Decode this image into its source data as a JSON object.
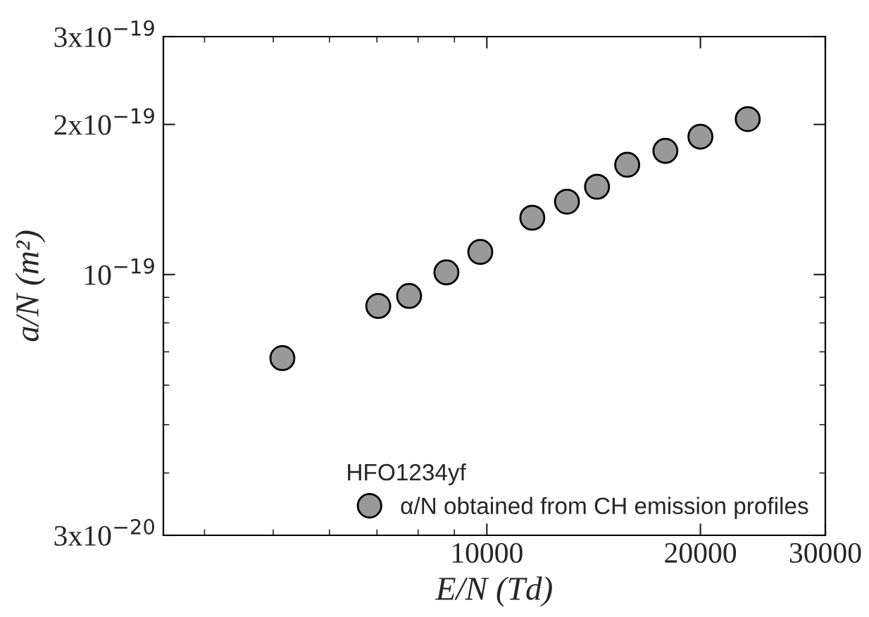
{
  "chart_data": {
    "type": "scatter",
    "xlabel": "E/N (Td)",
    "ylabel": "a/N (m²)",
    "legend_title": "HFO1234yf",
    "log": "xy",
    "grid": false,
    "legend": "bottom right",
    "marker": "circle",
    "xlim": [
      3500,
      30000
    ],
    "xticks": [
      10000,
      20000,
      30000
    ],
    "ylim": [
      3e-20,
      3e-19
    ],
    "yticks": [
      {
        "value": 3e-20,
        "label": "3x10$^{−20}$"
      },
      {
        "value": 1e-19,
        "label": "10$^{−19}$"
      },
      {
        "value": 2e-19,
        "label": "2x10$^{−19}$"
      },
      {
        "value": 3e-19,
        "label": "3x10$^{−19}$"
      }
    ],
    "x": [
      5150,
      7030,
      7770,
      8770,
      9790,
      11590,
      12970,
      14300,
      15770,
      17850,
      20000,
      23320
    ],
    "series": [
      {
        "name": "α/N obtained from CH emission profiles",
        "color": "#999999",
        "values": [
          6.8e-20,
          8.65e-20,
          9.06e-20,
          1.01e-19,
          1.11e-19,
          1.3e-19,
          1.4e-19,
          1.5e-19,
          1.66e-19,
          1.77e-19,
          1.89e-19,
          2.05e-19
        ]
      }
    ]
  }
}
